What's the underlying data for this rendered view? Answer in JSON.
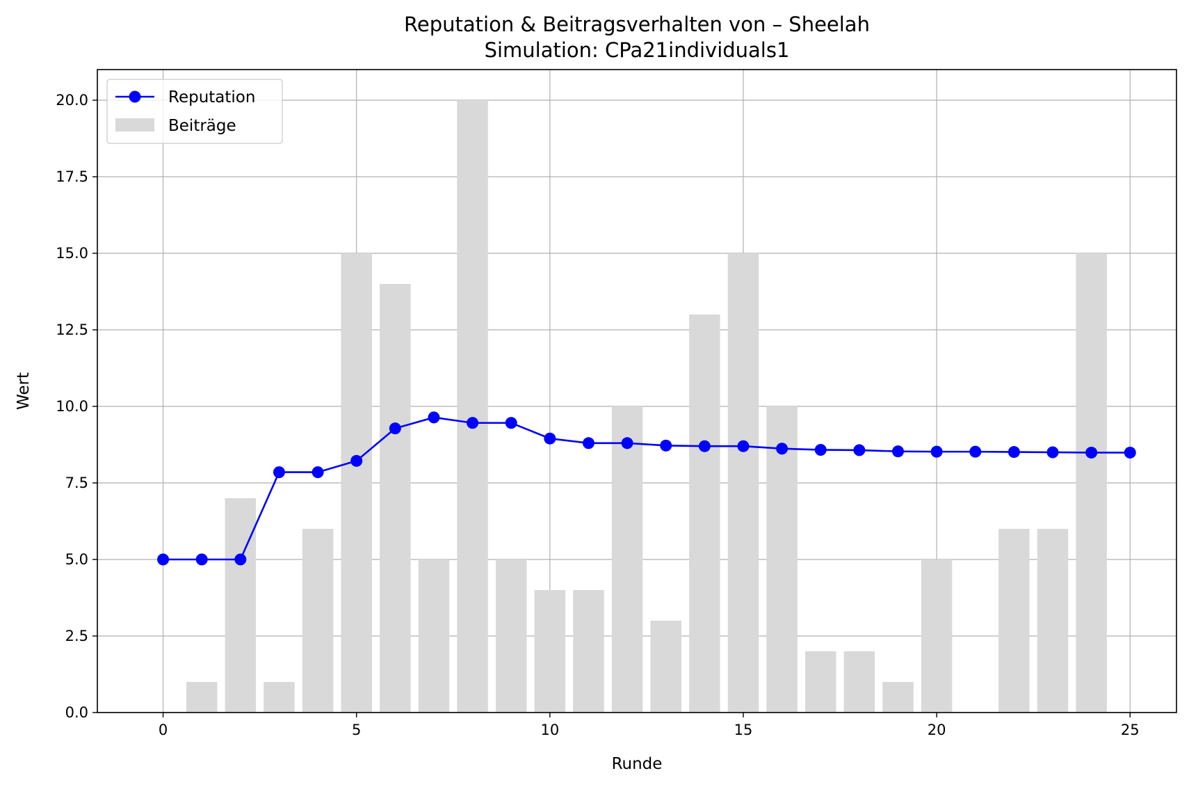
{
  "chart_data": {
    "type": "bar+line",
    "title": "Reputation & Beitragsverhalten von – Sheelah",
    "subtitle": "Simulation: CPa21individuals1",
    "xlabel": "Runde",
    "ylabel": "Wert",
    "xlim": [
      -1.7,
      26.2
    ],
    "ylim": [
      0,
      21
    ],
    "xticks": [
      0,
      5,
      10,
      15,
      20,
      25
    ],
    "yticks": [
      0.0,
      2.5,
      5.0,
      7.5,
      10.0,
      12.5,
      15.0,
      17.5,
      20.0
    ],
    "yticks_format": "fixed1",
    "grid": true,
    "legend_position": "upper-left",
    "series": [
      {
        "name": "Reputation",
        "kind": "line",
        "marker": "circle",
        "color": "#0000ff",
        "x": [
          0,
          1,
          2,
          3,
          4,
          5,
          6,
          7,
          8,
          9,
          10,
          11,
          12,
          13,
          14,
          15,
          16,
          17,
          18,
          19,
          20,
          21,
          22,
          23,
          24,
          25
        ],
        "values": [
          5.0,
          5.0,
          5.0,
          7.85,
          7.85,
          8.22,
          9.28,
          9.64,
          9.46,
          9.46,
          8.95,
          8.8,
          8.8,
          8.72,
          8.7,
          8.7,
          8.62,
          8.58,
          8.57,
          8.53,
          8.52,
          8.52,
          8.51,
          8.5,
          8.49,
          8.49
        ]
      },
      {
        "name": "Beiträge",
        "kind": "bar",
        "color": "#d9d9d9",
        "x": [
          1,
          2,
          3,
          4,
          5,
          6,
          7,
          8,
          9,
          10,
          11,
          12,
          13,
          14,
          15,
          16,
          17,
          18,
          19,
          20,
          21,
          22,
          23,
          24
        ],
        "values": [
          1,
          7,
          1,
          6,
          15,
          14,
          5,
          20,
          5,
          4,
          4,
          10,
          3,
          13,
          15,
          10,
          2,
          2,
          1,
          5,
          0,
          6,
          6,
          15
        ]
      }
    ]
  }
}
